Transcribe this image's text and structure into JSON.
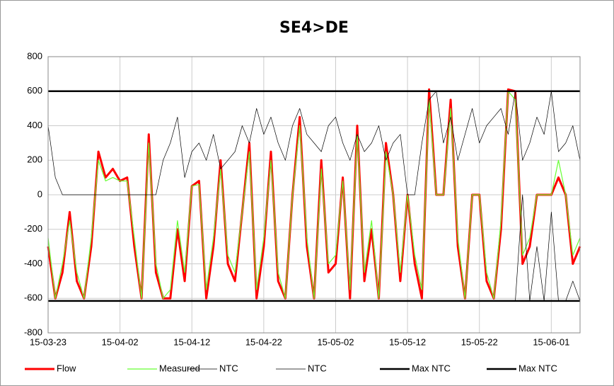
{
  "chart_data": {
    "type": "line",
    "title": "SE4>DE",
    "x": [
      "15-03-23",
      "15-03-24",
      "15-03-25",
      "15-03-26",
      "15-03-27",
      "15-03-28",
      "15-03-29",
      "15-03-30",
      "15-03-31",
      "15-04-01",
      "15-04-02",
      "15-04-03",
      "15-04-04",
      "15-04-05",
      "15-04-06",
      "15-04-07",
      "15-04-08",
      "15-04-09",
      "15-04-10",
      "15-04-11",
      "15-04-12",
      "15-04-13",
      "15-04-14",
      "15-04-15",
      "15-04-16",
      "15-04-17",
      "15-04-18",
      "15-04-19",
      "15-04-20",
      "15-04-21",
      "15-04-22",
      "15-04-23",
      "15-04-24",
      "15-04-25",
      "15-04-26",
      "15-04-27",
      "15-04-28",
      "15-04-29",
      "15-04-30",
      "15-05-01",
      "15-05-02",
      "15-05-03",
      "15-05-04",
      "15-05-05",
      "15-05-06",
      "15-05-07",
      "15-05-08",
      "15-05-09",
      "15-05-10",
      "15-05-11",
      "15-05-12",
      "15-05-13",
      "15-05-14",
      "15-05-15",
      "15-05-16",
      "15-05-17",
      "15-05-18",
      "15-05-19",
      "15-05-20",
      "15-05-21",
      "15-05-22",
      "15-05-23",
      "15-05-24",
      "15-05-25",
      "15-05-26",
      "15-05-27",
      "15-05-28",
      "15-05-29",
      "15-05-30",
      "15-05-31",
      "15-06-01",
      "15-06-02",
      "15-06-03",
      "15-06-04",
      "15-06-05"
    ],
    "series": [
      {
        "name": "Flow",
        "color": "#ff0000",
        "width": 3,
        "values": [
          -300,
          -600,
          -450,
          -100,
          -500,
          -600,
          -300,
          250,
          100,
          150,
          80,
          100,
          -300,
          -600,
          350,
          -450,
          -600,
          -600,
          -200,
          -500,
          50,
          80,
          -600,
          -300,
          200,
          -400,
          -500,
          -100,
          300,
          -600,
          -300,
          250,
          -500,
          -600,
          0,
          450,
          -300,
          -600,
          200,
          -450,
          -400,
          100,
          -600,
          400,
          -500,
          -200,
          -600,
          300,
          0,
          -500,
          0,
          -400,
          -600,
          610,
          0,
          0,
          550,
          -300,
          -600,
          0,
          0,
          -500,
          -600,
          -200,
          610,
          600,
          -400,
          -300,
          0,
          0,
          0,
          100,
          0,
          -400,
          -300
        ]
      },
      {
        "name": "Measured",
        "color": "#66ff33",
        "width": 1.2,
        "values": [
          -250,
          -600,
          -400,
          -150,
          -450,
          -600,
          -250,
          200,
          80,
          100,
          80,
          80,
          -250,
          -600,
          300,
          -400,
          -600,
          -550,
          -150,
          -450,
          50,
          60,
          -550,
          -250,
          150,
          -350,
          -450,
          -100,
          250,
          -550,
          -250,
          200,
          -450,
          -600,
          0,
          400,
          -250,
          -600,
          150,
          -400,
          -350,
          80,
          -550,
          350,
          -450,
          -150,
          -600,
          250,
          0,
          -450,
          0,
          -350,
          -550,
          550,
          0,
          0,
          500,
          -250,
          -600,
          0,
          0,
          -450,
          -600,
          -150,
          600,
          550,
          -350,
          -250,
          0,
          0,
          0,
          200,
          0,
          -350,
          -250
        ]
      },
      {
        "name": "NTC",
        "color": "#000000",
        "width": 0.7,
        "values": [
          400,
          100,
          0,
          0,
          0,
          0,
          0,
          0,
          0,
          0,
          0,
          0,
          0,
          0,
          0,
          0,
          200,
          300,
          450,
          100,
          250,
          300,
          200,
          350,
          150,
          200,
          250,
          400,
          300,
          500,
          350,
          450,
          300,
          200,
          400,
          500,
          350,
          300,
          250,
          400,
          450,
          300,
          200,
          350,
          250,
          300,
          400,
          200,
          300,
          350,
          0,
          0,
          300,
          550,
          600,
          300,
          450,
          200,
          350,
          500,
          300,
          400,
          450,
          500,
          350,
          600,
          200,
          300,
          450,
          350,
          600,
          250,
          300,
          400,
          200
        ]
      },
      {
        "name": "NTC",
        "color": "#000000",
        "width": 0.7,
        "values": [
          -615,
          -615,
          -615,
          -615,
          -615,
          -615,
          -615,
          -615,
          -615,
          -615,
          -615,
          -615,
          -615,
          -615,
          -615,
          -615,
          -615,
          -615,
          -615,
          -615,
          -615,
          -615,
          -615,
          -615,
          -615,
          -615,
          -615,
          -615,
          -615,
          -615,
          -615,
          -615,
          -615,
          -615,
          -615,
          -615,
          -615,
          -615,
          -615,
          -615,
          -615,
          -615,
          -615,
          -615,
          -615,
          -615,
          -615,
          -615,
          -615,
          -615,
          -615,
          -615,
          -615,
          -615,
          -615,
          -615,
          -615,
          -615,
          -615,
          -615,
          -615,
          -615,
          -615,
          -615,
          -615,
          -615,
          0,
          -615,
          -300,
          -615,
          -100,
          -615,
          -615,
          -500,
          -615
        ]
      },
      {
        "name": "Max NTC",
        "color": "#000000",
        "width": 2.5,
        "values": [
          600,
          600,
          600,
          600,
          600,
          600,
          600,
          600,
          600,
          600,
          600,
          600,
          600,
          600,
          600,
          600,
          600,
          600,
          600,
          600,
          600,
          600,
          600,
          600,
          600,
          600,
          600,
          600,
          600,
          600,
          600,
          600,
          600,
          600,
          600,
          600,
          600,
          600,
          600,
          600,
          600,
          600,
          600,
          600,
          600,
          600,
          600,
          600,
          600,
          600,
          600,
          600,
          600,
          600,
          600,
          600,
          600,
          600,
          600,
          600,
          600,
          600,
          600,
          600,
          600,
          600,
          600,
          600,
          600,
          600,
          600,
          600,
          600,
          600,
          600
        ]
      },
      {
        "name": "Max NTC",
        "color": "#000000",
        "width": 2.5,
        "values": [
          -615,
          -615,
          -615,
          -615,
          -615,
          -615,
          -615,
          -615,
          -615,
          -615,
          -615,
          -615,
          -615,
          -615,
          -615,
          -615,
          -615,
          -615,
          -615,
          -615,
          -615,
          -615,
          -615,
          -615,
          -615,
          -615,
          -615,
          -615,
          -615,
          -615,
          -615,
          -615,
          -615,
          -615,
          -615,
          -615,
          -615,
          -615,
          -615,
          -615,
          -615,
          -615,
          -615,
          -615,
          -615,
          -615,
          -615,
          -615,
          -615,
          -615,
          -615,
          -615,
          -615,
          -615,
          -615,
          -615,
          -615,
          -615,
          -615,
          -615,
          -615,
          -615,
          -615,
          -615,
          -615,
          -615,
          -615,
          -615,
          -615,
          -615,
          -615,
          -615,
          -615,
          -615,
          -615
        ]
      }
    ],
    "xlim": [
      "15-03-23",
      "15-06-05"
    ],
    "xticks": [
      "15-03-23",
      "15-04-02",
      "15-04-12",
      "15-04-22",
      "15-05-02",
      "15-05-12",
      "15-05-22",
      "15-06-01"
    ],
    "ylim": [
      -800,
      800
    ],
    "yticks": [
      -800,
      -600,
      -400,
      -200,
      0,
      200,
      400,
      600,
      800
    ],
    "grid": true,
    "legend": "bottom"
  }
}
